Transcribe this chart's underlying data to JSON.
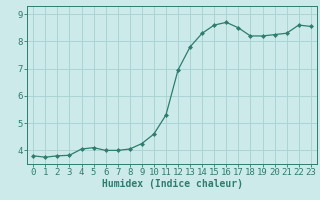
{
  "x": [
    0,
    1,
    2,
    3,
    4,
    5,
    6,
    7,
    8,
    9,
    10,
    11,
    12,
    13,
    14,
    15,
    16,
    17,
    18,
    19,
    20,
    21,
    22,
    23
  ],
  "y": [
    3.8,
    3.75,
    3.8,
    3.82,
    4.05,
    4.1,
    4.0,
    4.0,
    4.05,
    4.25,
    4.6,
    5.3,
    6.95,
    7.8,
    8.3,
    8.6,
    8.7,
    8.5,
    8.2,
    8.2,
    8.25,
    8.3,
    8.6,
    8.55
  ],
  "line_color": "#2e7d6e",
  "marker": "D",
  "marker_size": 2.0,
  "bg_color": "#cceaea",
  "grid_color": "#aad4d4",
  "axis_color": "#2e7d6e",
  "xlabel": "Humidex (Indice chaleur)",
  "xlabel_fontsize": 7,
  "tick_fontsize": 6.5,
  "ylim": [
    3.5,
    9.3
  ],
  "xlim": [
    -0.5,
    23.5
  ],
  "yticks": [
    4,
    5,
    6,
    7,
    8,
    9
  ],
  "xticks": [
    0,
    1,
    2,
    3,
    4,
    5,
    6,
    7,
    8,
    9,
    10,
    11,
    12,
    13,
    14,
    15,
    16,
    17,
    18,
    19,
    20,
    21,
    22,
    23
  ]
}
